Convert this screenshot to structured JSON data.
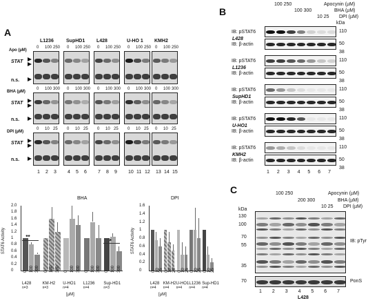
{
  "panelA": {
    "label": "A",
    "cell_lines": [
      "L1236",
      "SupHD1",
      "L428",
      "U-HO 1",
      "KMH2"
    ],
    "apo_row": {
      "label": "Apo (µM)",
      "doses": [
        "0",
        "100",
        "250"
      ]
    },
    "bha_row": {
      "label": "BHA (µM)",
      "doses": [
        "0",
        "100",
        "300"
      ]
    },
    "dpi_row": {
      "label": "DPI (µM)",
      "doses": [
        "0",
        "10",
        "25"
      ]
    },
    "stat_label": "STAT",
    "ns_label": "n.s.",
    "lane_numbers": [
      "1",
      "2",
      "3",
      "4",
      "5",
      "6",
      "7",
      "8",
      "9",
      "10",
      "11",
      "12",
      "13",
      "14",
      "15"
    ]
  },
  "panelB": {
    "label": "B",
    "treat": {
      "apo": "Apocynin (µM)",
      "apo_doses": "100 250",
      "bha": "BHA (µM)",
      "bha_doses": "100 300",
      "dpi": "DPI (µM)",
      "dpi_doses": "10   25"
    },
    "kda": "kDa",
    "blocks": [
      {
        "cell": "L428",
        "rows": [
          {
            "ib": "IB: pSTAT6",
            "kda": "110"
          },
          {
            "ib": "IB: β-actin",
            "kda": "50"
          }
        ],
        "tail": "38"
      },
      {
        "cell": "L1236",
        "rows": [
          {
            "ib": "IB: pSTAT6",
            "kda": "110"
          },
          {
            "ib": "IB: β-actin",
            "kda": "50"
          }
        ],
        "tail": "38"
      },
      {
        "cell": "SupHD1",
        "rows": [
          {
            "ib": "IB: pSTAT6",
            "kda": "110"
          },
          {
            "ib": "IB: β-actin",
            "kda": "50"
          }
        ],
        "tail": "38"
      },
      {
        "cell": "U-HO1",
        "rows": [
          {
            "ib": "IB: pSTAT6",
            "kda": "110"
          },
          {
            "ib": "IB: β-actin",
            "kda": "50"
          }
        ],
        "tail": "38"
      },
      {
        "cell": "KMH2",
        "rows": [
          {
            "ib": "IB: pSTAT6",
            "kda": "110"
          },
          {
            "ib": "IB: β-actin",
            "kda": "50"
          }
        ],
        "tail": "38"
      }
    ],
    "lanes": [
      "1",
      "2",
      "3",
      "4",
      "5",
      "6",
      "7"
    ]
  },
  "panelC": {
    "label": "C",
    "apo_doses": "100 250",
    "apo": "Apocynin (µM)",
    "bha_doses": "200 300",
    "bha": "BHA (µM)",
    "dpi_doses": "10   25",
    "dpi": "DPI (µM)",
    "kda": "kDa",
    "markers": [
      "130",
      "100",
      "70",
      "55",
      "35",
      "70"
    ],
    "ib": "IB: pTyr",
    "pons": "PonS",
    "lanes": [
      "1",
      "2",
      "3",
      "4",
      "5",
      "6",
      "7"
    ],
    "cell": "L428"
  },
  "chart_data": [
    {
      "type": "bar",
      "title": "BHA",
      "ylabel": "STAT6 Activity",
      "ylim": [
        0,
        2.0
      ],
      "yticks": [
        "0",
        "0.2",
        "0.4",
        "0.6",
        "0.8",
        "1",
        "1.2",
        "1.4",
        "1.6",
        "1.8",
        "2.0"
      ],
      "dose_labels": [
        "0",
        "100",
        "300"
      ],
      "groups": [
        {
          "name": "L428",
          "n": "n=3",
          "values": [
            1.0,
            0.8,
            0.5
          ],
          "errors": [
            0.0,
            0.08,
            0.06
          ]
        },
        {
          "name": "KM-H2",
          "n": "n=3",
          "values": [
            1.0,
            1.6,
            1.2
          ],
          "errors": [
            0.0,
            0.35,
            0.3
          ]
        },
        {
          "name": "U-HO1",
          "n": "n=4",
          "values": [
            1.0,
            1.6,
            1.4
          ],
          "errors": [
            0.0,
            0.4,
            0.3
          ]
        },
        {
          "name": "L1236",
          "n": "n=4",
          "values": [
            1.0,
            1.5,
            1.0
          ],
          "errors": [
            0.0,
            0.3,
            0.4
          ]
        },
        {
          "name": "Sup-HD1",
          "n": "n=3",
          "values": [
            1.0,
            1.05,
            0.6
          ],
          "errors": [
            0.0,
            0.1,
            0.15
          ]
        }
      ],
      "xlabel": "[µM]",
      "significance": [
        "**",
        "*"
      ]
    },
    {
      "type": "bar",
      "title": "DPI",
      "ylabel": "STAT6 Activity",
      "ylim": [
        0,
        1.6
      ],
      "yticks": [
        "0",
        "0.2",
        "0.4",
        "0.6",
        "0.8",
        "1",
        "1.2",
        "1.4",
        "1.6"
      ],
      "dose_labels": [
        "0",
        "10",
        "25"
      ],
      "groups": [
        {
          "name": "L428",
          "n": "n=4",
          "values": [
            1.0,
            0.75,
            0.6
          ],
          "errors": [
            0.0,
            0.2,
            0.2
          ]
        },
        {
          "name": "KM-H2",
          "n": "n=4",
          "values": [
            1.0,
            0.7,
            0.5
          ],
          "errors": [
            0.0,
            0.25,
            0.15
          ]
        },
        {
          "name": "U-HO1",
          "n": "n=4",
          "values": [
            1.0,
            0.4,
            0.4
          ],
          "errors": [
            0.0,
            0.3,
            0.2
          ]
        },
        {
          "name": "L1236",
          "n": "n=4",
          "values": [
            1.0,
            1.0,
            0.8
          ],
          "errors": [
            0.0,
            0.55,
            0.5
          ]
        },
        {
          "name": "Sup-HD1",
          "n": "n=4",
          "values": [
            1.0,
            0.4,
            0.2
          ],
          "errors": [
            0.0,
            0.2,
            0.1
          ]
        }
      ],
      "xlabel": "[µM]"
    }
  ]
}
